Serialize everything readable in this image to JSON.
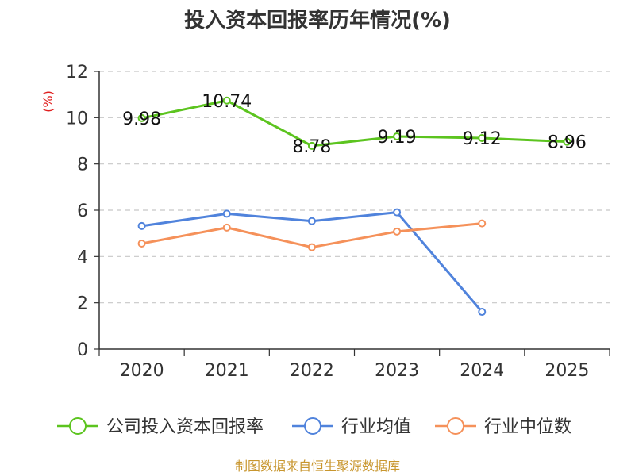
{
  "chart_data": {
    "type": "line",
    "title": "投入资本回报率历年情况(%)",
    "ylabel": "(%)",
    "xlabel": "",
    "categories": [
      "2020",
      "2021",
      "2022",
      "2023",
      "2024",
      "2025"
    ],
    "ylim": [
      0,
      12
    ],
    "yticks": [
      0,
      2,
      4,
      6,
      8,
      10,
      12
    ],
    "grid": true,
    "legend_position": "bottom",
    "series": [
      {
        "name": "公司投入资本回报率",
        "color": "#5cc41f",
        "values": [
          9.98,
          10.74,
          8.78,
          9.19,
          9.12,
          8.96
        ],
        "labels": [
          "9.98",
          "10.74",
          "8.78",
          "9.19",
          "9.12",
          "8.96"
        ]
      },
      {
        "name": "行业均值",
        "color": "#5083dc",
        "values": [
          5.32,
          5.85,
          5.53,
          5.91,
          1.61,
          null
        ]
      },
      {
        "name": "行业中位数",
        "color": "#f5915a",
        "values": [
          4.56,
          5.25,
          4.4,
          5.08,
          5.43,
          null
        ]
      }
    ],
    "source": "制图数据来自恒生聚源数据库"
  },
  "colors": {
    "axis": "#333333",
    "grid": "#c8c8c8",
    "ylabel": "#e02020",
    "source": "#c8962e"
  }
}
